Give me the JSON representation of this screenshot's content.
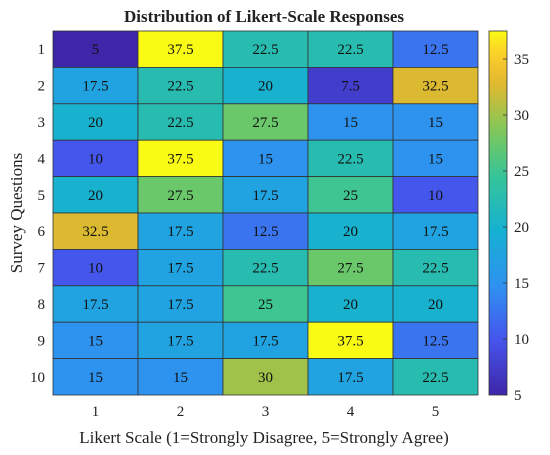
{
  "chart_data": {
    "type": "heatmap",
    "title": "Distribution of Likert-Scale Responses",
    "xlabel": "Likert Scale (1=Strongly Disagree, 5=Strongly Agree)",
    "ylabel": "Survey Questions",
    "x_categories": [
      "1",
      "2",
      "3",
      "4",
      "5"
    ],
    "y_categories": [
      "1",
      "2",
      "3",
      "4",
      "5",
      "6",
      "7",
      "8",
      "9",
      "10"
    ],
    "values": [
      [
        5,
        37.5,
        22.5,
        22.5,
        12.5
      ],
      [
        17.5,
        22.5,
        20,
        7.5,
        32.5
      ],
      [
        20,
        22.5,
        27.5,
        15,
        15
      ],
      [
        10,
        37.5,
        15,
        22.5,
        15
      ],
      [
        20,
        27.5,
        17.5,
        25,
        10
      ],
      [
        32.5,
        17.5,
        12.5,
        20,
        17.5
      ],
      [
        10,
        17.5,
        22.5,
        27.5,
        22.5
      ],
      [
        17.5,
        17.5,
        25,
        20,
        20
      ],
      [
        15,
        17.5,
        17.5,
        37.5,
        12.5
      ],
      [
        15,
        15,
        30,
        17.5,
        22.5
      ]
    ],
    "colorbar": {
      "colormap": "parula",
      "range": [
        5,
        37.5
      ],
      "ticks": [
        "5",
        "10",
        "15",
        "20",
        "25",
        "30",
        "35"
      ]
    }
  }
}
